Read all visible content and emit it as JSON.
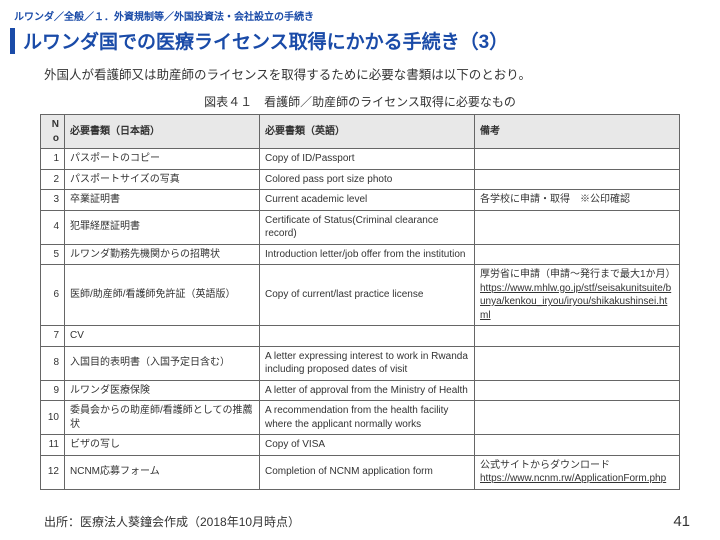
{
  "breadcrumb": "ルワンダ／全般／１．外資規制等／外国投資法・会社設立の手続き",
  "title": "ルワンダ国での医療ライセンス取得にかかる手続き（3）",
  "lead": "外国人が看護師又は助産師のライセンスを取得するために必要な書類は以下のとおり。",
  "table_caption": "図表４１　看護師／助産師のライセンス取得に必要なもの",
  "columns": {
    "no": "No",
    "jp": "必要書類（日本語）",
    "en": "必要書類（英語）",
    "remarks": "備考"
  },
  "rows": [
    {
      "no": "1",
      "jp": "パスポートのコピー",
      "en": "Copy of ID/Passport",
      "rem": ""
    },
    {
      "no": "2",
      "jp": "パスポートサイズの写真",
      "en": "Colored pass port size photo",
      "rem": ""
    },
    {
      "no": "3",
      "jp": "卒業証明書",
      "en": "Current academic level",
      "rem": "各学校に申請・取得　※公印確認"
    },
    {
      "no": "4",
      "jp": "犯罪経歴証明書",
      "en": "Certificate of Status(Criminal clearance record)",
      "rem": ""
    },
    {
      "no": "5",
      "jp": "ルワンダ勤務先機関からの招聘状",
      "en": "Introduction letter/job offer from the institution",
      "rem": ""
    },
    {
      "no": "6",
      "jp": "医師/助産師/看護師免許証（英語版）",
      "en": "Copy of current/last practice license",
      "rem_pre": "厚労省に申請（申請～発行まで最大1か月）",
      "rem_link": "https://www.mhlw.go.jp/stf/seisakunitsuite/bunya/kenkou_iryou/iryou/shikakushinsei.html"
    },
    {
      "no": "7",
      "jp": "CV",
      "en": "",
      "rem": ""
    },
    {
      "no": "8",
      "jp": "入国目的表明書（入国予定日含む）",
      "en": "A letter expressing interest to work in Rwanda including proposed dates of visit",
      "rem": ""
    },
    {
      "no": "9",
      "jp": "ルワンダ医療保険",
      "en": "A letter of approval from the Ministry of Health",
      "rem": ""
    },
    {
      "no": "10",
      "jp": "委員会からの助産師/看護師としての推薦状",
      "en": "A recommendation from the health facility where the applicant normally works",
      "rem": ""
    },
    {
      "no": "11",
      "jp": "ビザの写し",
      "en": "Copy of VISA",
      "rem": ""
    },
    {
      "no": "12",
      "jp": "NCNM応募フォーム",
      "en": "Completion of NCNM application form",
      "rem_pre": "公式サイトからダウンロード",
      "rem_link": "https://www.ncnm.rw/ApplicationForm.php"
    }
  ],
  "source": "出所：医療法人葵鐘会作成（2018年10月時点）",
  "page_number": "41",
  "colors": {
    "brand": "#1a4ba8",
    "header_bg": "#e8e8e8",
    "border": "#666666",
    "text": "#333333",
    "background": "#ffffff"
  }
}
